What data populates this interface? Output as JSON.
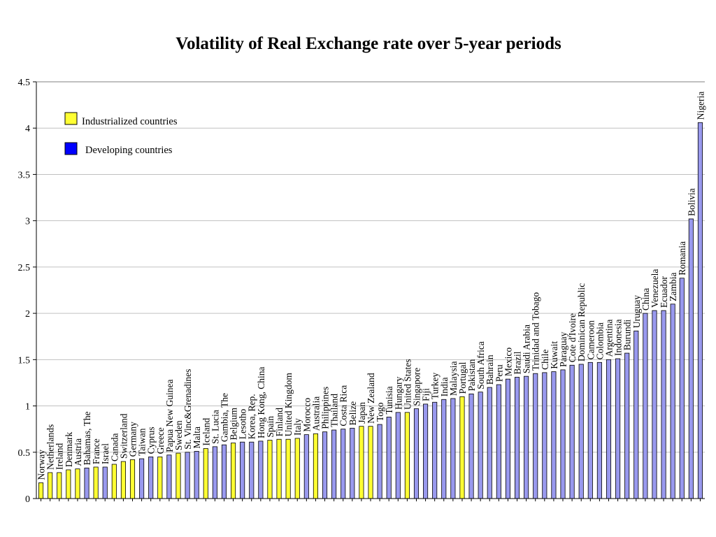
{
  "chart_data": {
    "type": "bar",
    "title": "Volatility of Real Exchange rate over 5-year periods",
    "xlabel": "",
    "ylabel": "",
    "ylim": [
      0,
      4.5
    ],
    "yticks": [
      "0",
      "0.5",
      "1",
      "1.5",
      "2",
      "2.5",
      "3",
      "3.5",
      "4",
      "4.5"
    ],
    "grid": true,
    "legend_position": "top-left",
    "colors": {
      "industrialized": "#FFFF33",
      "developing": "#9999EE",
      "legend_developing": "#0000FF",
      "grid": "#C0C0C0"
    },
    "legend": [
      {
        "key": "industrialized",
        "label": "Industrialized countries"
      },
      {
        "key": "developing",
        "label": "Developing countries"
      }
    ],
    "categories": [
      "Norway",
      "Netherlands",
      "Ireland",
      "Denmark",
      "Austria",
      "Bahamas, The",
      "France",
      "Israel",
      "Canada",
      "Switzerland",
      "Germany",
      "Taiwan",
      "Cyprus",
      "Greece",
      "Papua New Guinea",
      "Sweden",
      "St. Vinc&Grenadines",
      "Malta",
      "Iceland",
      "St. Lucia",
      "Gambia, The",
      "Belgium",
      "Lesotho",
      "Korea, Rep.",
      "Hong Kong, China",
      "Spain",
      "Finland",
      "United Kingdom",
      "Italy",
      "Morocco",
      "Australia",
      "Philippines",
      "Thailand",
      "Costa Rica",
      "Belize",
      "Japan",
      "New Zealand",
      "Togo",
      "Tunisia",
      "Hungary",
      "United States",
      "Singapore",
      "Fiji",
      "Turkey",
      "India",
      "Malaysia",
      "Portugal",
      "Pakistan",
      "South Africa",
      "Bahrain",
      "Peru",
      "Mexico",
      "Brazil",
      "Saudi Arabia",
      "Trinidad and Tobago",
      "Chile",
      "Kuwait",
      "Paraguay",
      "Cote d'Ivoire",
      "Dominican Republic",
      "Cameroon",
      "Colombia",
      "Argentina",
      "Indonesia",
      "Burundi",
      "Uruguay",
      "China",
      "Venezuela",
      "Ecuador",
      "Zambia",
      "Romania",
      "Bolivia",
      "Nigeria"
    ],
    "values": [
      0.17,
      0.28,
      0.28,
      0.31,
      0.32,
      0.33,
      0.34,
      0.34,
      0.37,
      0.4,
      0.42,
      0.43,
      0.45,
      0.45,
      0.47,
      0.49,
      0.5,
      0.51,
      0.54,
      0.56,
      0.58,
      0.6,
      0.61,
      0.61,
      0.62,
      0.63,
      0.64,
      0.64,
      0.65,
      0.69,
      0.7,
      0.72,
      0.74,
      0.75,
      0.76,
      0.78,
      0.78,
      0.8,
      0.88,
      0.93,
      0.93,
      0.97,
      1.02,
      1.04,
      1.07,
      1.08,
      1.1,
      1.13,
      1.15,
      1.2,
      1.23,
      1.29,
      1.31,
      1.32,
      1.35,
      1.36,
      1.37,
      1.39,
      1.44,
      1.45,
      1.47,
      1.47,
      1.5,
      1.51,
      1.57,
      1.81,
      2.0,
      2.03,
      2.03,
      2.1,
      2.38,
      3.02,
      4.06
    ],
    "groups": [
      "industrialized",
      "industrialized",
      "industrialized",
      "industrialized",
      "industrialized",
      "developing",
      "industrialized",
      "developing",
      "industrialized",
      "industrialized",
      "industrialized",
      "developing",
      "developing",
      "industrialized",
      "developing",
      "industrialized",
      "developing",
      "developing",
      "industrialized",
      "developing",
      "developing",
      "industrialized",
      "developing",
      "developing",
      "developing",
      "industrialized",
      "industrialized",
      "industrialized",
      "industrialized",
      "developing",
      "industrialized",
      "developing",
      "developing",
      "developing",
      "developing",
      "industrialized",
      "industrialized",
      "developing",
      "developing",
      "developing",
      "industrialized",
      "developing",
      "developing",
      "developing",
      "developing",
      "developing",
      "industrialized",
      "developing",
      "developing",
      "developing",
      "developing",
      "developing",
      "developing",
      "developing",
      "developing",
      "developing",
      "developing",
      "developing",
      "developing",
      "developing",
      "developing",
      "developing",
      "developing",
      "developing",
      "developing",
      "developing",
      "developing",
      "developing",
      "developing",
      "developing",
      "developing",
      "developing",
      "developing"
    ]
  }
}
